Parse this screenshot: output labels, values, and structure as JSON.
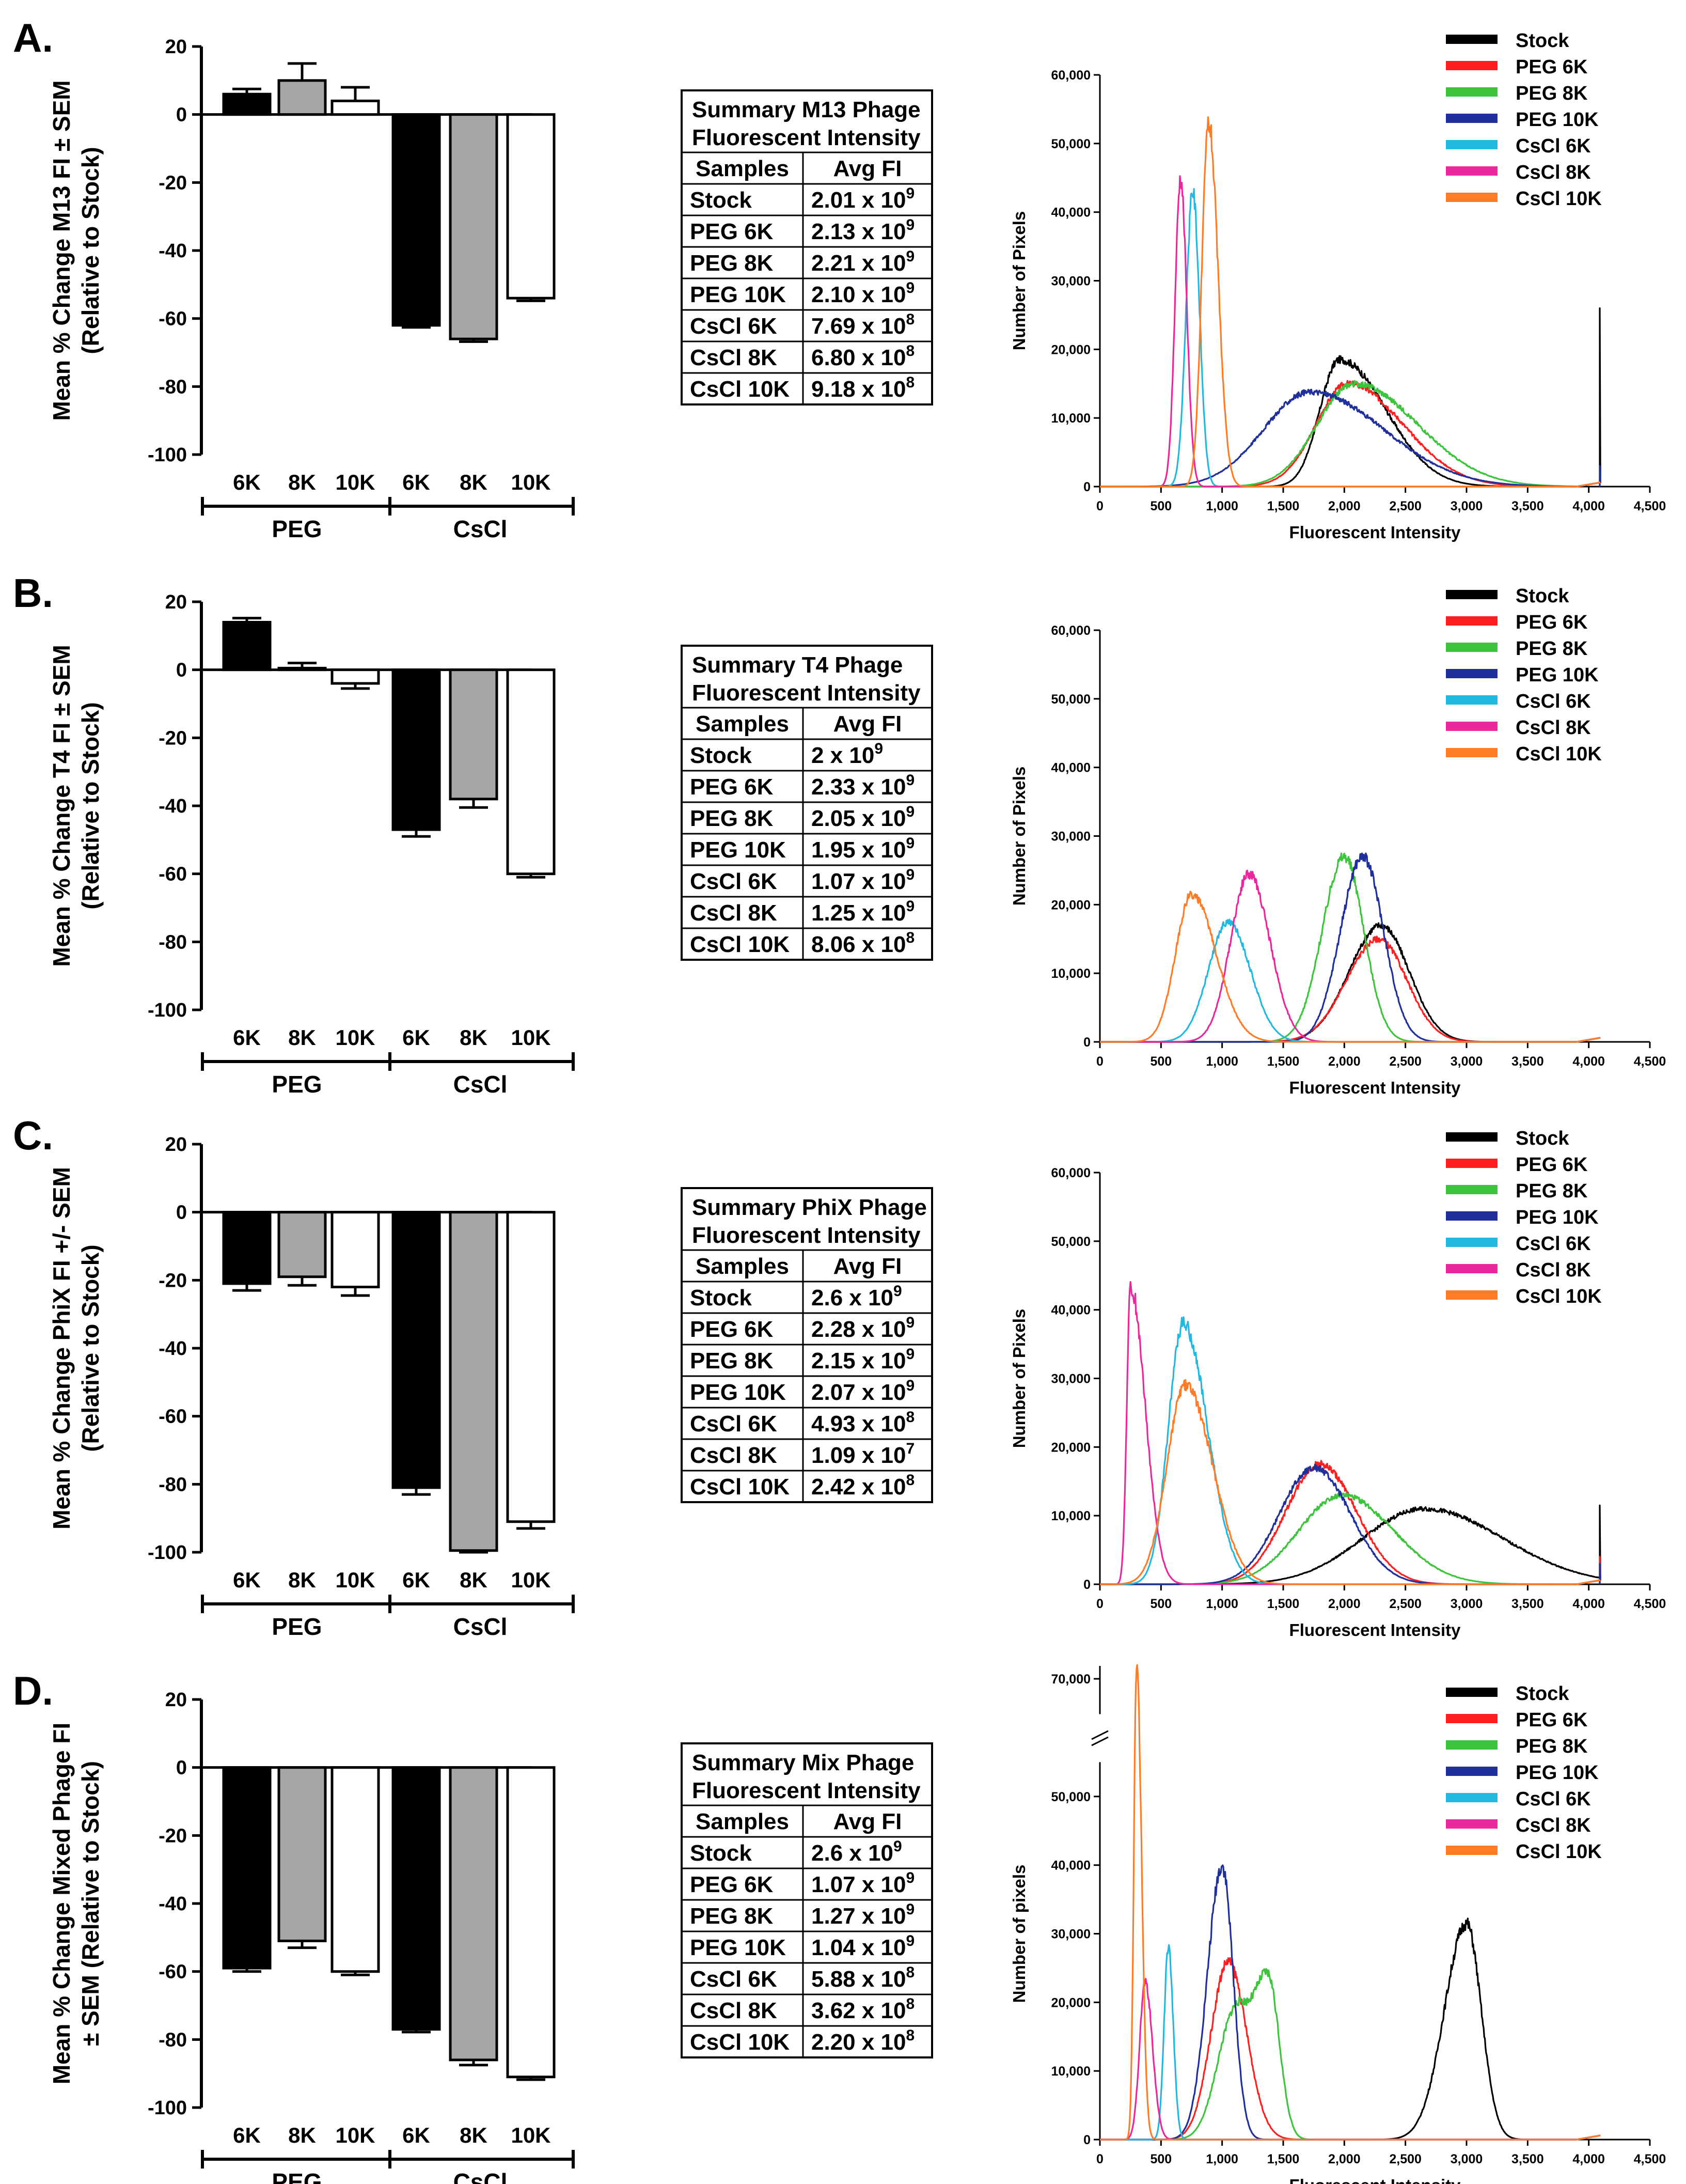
{
  "panels": [
    {
      "label": "A.",
      "bar_chart": {
        "type": "bar",
        "ylabel_line1": "Mean % Change M13 FI ± SEM",
        "ylabel_line2": "(Relative to Stock)",
        "ylim": [
          -100,
          20
        ],
        "yticks": [
          20,
          0,
          -20,
          -40,
          -60,
          -80,
          -100
        ],
        "categories": [
          "6K",
          "8K",
          "10K",
          "6K",
          "8K",
          "10K"
        ],
        "groups": [
          "PEG",
          "CsCl"
        ],
        "values": [
          6,
          10,
          4,
          -62,
          -66,
          -54
        ],
        "errors": [
          1.5,
          5,
          4,
          0.6,
          0.8,
          0.8
        ],
        "fills": [
          "#000000",
          "#a6a6a6",
          "#ffffff",
          "#000000",
          "#a6a6a6",
          "#ffffff"
        ]
      },
      "table": {
        "title_line1": "Summary M13 Phage",
        "title_line2": "Fluorescent Intensity",
        "headers": [
          "Samples",
          "Avg FI"
        ],
        "rows": [
          {
            "sample": "Stock",
            "mant": "2.01 x 10",
            "exp": "9"
          },
          {
            "sample": "PEG 6K",
            "mant": "2.13 x 10",
            "exp": "9"
          },
          {
            "sample": "PEG 8K",
            "mant": "2.21 x 10",
            "exp": "9"
          },
          {
            "sample": "PEG 10K",
            "mant": "2.10 x 10",
            "exp": "9"
          },
          {
            "sample": "CsCl 6K",
            "mant": "7.69 x 10",
            "exp": "8"
          },
          {
            "sample": "CsCl 8K",
            "mant": "6.80 x 10",
            "exp": "8"
          },
          {
            "sample": "CsCl 10K",
            "mant": "9.18 x 10",
            "exp": "8"
          }
        ]
      },
      "histogram": {
        "type": "line",
        "xlabel": "Fluorescent Intensity",
        "ylabel": "Number of Pixels",
        "xlim": [
          0,
          4500
        ],
        "ylim": [
          0,
          60000
        ],
        "xticks": [
          "0",
          "500",
          "1,000",
          "1,500",
          "2,000",
          "2,500",
          "3,000",
          "3,500",
          "4,000",
          "4,500"
        ],
        "yticks": [
          "0",
          "10,000",
          "20,000",
          "30,000",
          "40,000",
          "50,000",
          "60,000"
        ],
        "legend": [
          "Stock",
          "PEG 6K",
          "PEG 8K",
          "PEG 10K",
          "CsCl 6K",
          "CsCl 8K",
          "CsCl 10K"
        ],
        "series": [
          {
            "name": "Stock",
            "color": "#000000",
            "peaks": [
              [
                1960,
                18500,
                160,
                380
              ]
            ],
            "spike": [
              4090,
              26000
            ]
          },
          {
            "name": "PEG 6K",
            "color": "#ff1f1f",
            "peaks": [
              [
                2030,
                15000,
                260,
                450
              ]
            ]
          },
          {
            "name": "PEG 8K",
            "color": "#3cc43c",
            "peaks": [
              [
                2080,
                15000,
                300,
                520
              ]
            ]
          },
          {
            "name": "PEG 10K",
            "color": "#1f2f9c",
            "peaks": [
              [
                1720,
                13800,
                380,
                600
              ]
            ],
            "spike": [
              4090,
              3000
            ]
          },
          {
            "name": "CsCl 6K",
            "color": "#22b8e0",
            "peaks": [
              [
                760,
                43000,
                55,
                55
              ]
            ]
          },
          {
            "name": "CsCl 8K",
            "color": "#e8289c",
            "peaks": [
              [
                660,
                45000,
                45,
                50
              ]
            ]
          },
          {
            "name": "CsCl 10K",
            "color": "#ff7b26",
            "peaks": [
              [
                890,
                53000,
                55,
                75
              ]
            ]
          }
        ]
      }
    },
    {
      "label": "B.",
      "bar_chart": {
        "type": "bar",
        "ylabel_line1": "Mean % Change T4 FI ± SEM",
        "ylabel_line2": "(Relative to Stock)",
        "ylim": [
          -100,
          20
        ],
        "yticks": [
          20,
          0,
          -20,
          -40,
          -60,
          -80,
          -100
        ],
        "categories": [
          "6K",
          "8K",
          "10K",
          "6K",
          "8K",
          "10K"
        ],
        "groups": [
          "PEG",
          "CsCl"
        ],
        "values": [
          14,
          0.5,
          -4,
          -47,
          -38,
          -60
        ],
        "errors": [
          1.2,
          1.5,
          1.5,
          2,
          2.5,
          1
        ],
        "fills": [
          "#000000",
          "#a6a6a6",
          "#ffffff",
          "#000000",
          "#a6a6a6",
          "#ffffff"
        ]
      },
      "table": {
        "title_line1": "Summary T4 Phage",
        "title_line2": "Fluorescent Intensity",
        "headers": [
          "Samples",
          "Avg FI"
        ],
        "rows": [
          {
            "sample": "Stock",
            "mant": "2 x 10",
            "exp": "9"
          },
          {
            "sample": "PEG 6K",
            "mant": "2.33 x 10",
            "exp": "9"
          },
          {
            "sample": "PEG 8K",
            "mant": "2.05 x 10",
            "exp": "9"
          },
          {
            "sample": "PEG 10K",
            "mant": "1.95 x 10",
            "exp": "9"
          },
          {
            "sample": "CsCl 6K",
            "mant": "1.07 x 10",
            "exp": "9"
          },
          {
            "sample": "CsCl 8K",
            "mant": "1.25 x 10",
            "exp": "9"
          },
          {
            "sample": "CsCl 10K",
            "mant": "8.06 x 10",
            "exp": "8"
          }
        ]
      },
      "histogram": {
        "type": "line",
        "xlabel": "Fluorescent Intensity",
        "ylabel": "Number of Pixels",
        "xlim": [
          0,
          4500
        ],
        "ylim": [
          0,
          60000
        ],
        "xticks": [
          "0",
          "500",
          "1,000",
          "1,500",
          "2,000",
          "2,500",
          "3,000",
          "3,500",
          "4,000",
          "4,500"
        ],
        "yticks": [
          "0",
          "10,000",
          "20,000",
          "30,000",
          "40,000",
          "50,000",
          "60,000"
        ],
        "legend": [
          "Stock",
          "PEG 6K",
          "PEG 8K",
          "PEG 10K",
          "CsCl 6K",
          "CsCl 8K",
          "CsCl 10K"
        ],
        "series": [
          {
            "name": "Stock",
            "color": "#000000",
            "peaks": [
              [
                2300,
                17000,
                260,
                230
              ]
            ]
          },
          {
            "name": "PEG 6K",
            "color": "#ff1f1f",
            "peaks": [
              [
                2280,
                15000,
                260,
                230
              ]
            ]
          },
          {
            "name": "PEG 8K",
            "color": "#3cc43c",
            "peaks": [
              [
                2000,
                27000,
                180,
                160
              ]
            ]
          },
          {
            "name": "PEG 10K",
            "color": "#1f2f9c",
            "peaks": [
              [
                2150,
                27000,
                180,
                170
              ]
            ]
          },
          {
            "name": "CsCl 6K",
            "color": "#22b8e0",
            "peaks": [
              [
                1050,
                17500,
                160,
                180
              ]
            ]
          },
          {
            "name": "CsCl 8K",
            "color": "#e8289c",
            "peaks": [
              [
                1220,
                24500,
                150,
                170
              ]
            ]
          },
          {
            "name": "CsCl 10K",
            "color": "#ff7b26",
            "peaks": [
              [
                750,
                21500,
                130,
                200
              ]
            ]
          }
        ]
      }
    },
    {
      "label": "C.",
      "bar_chart": {
        "type": "bar",
        "ylabel_line1": "Mean % Change PhiX FI +/- SEM",
        "ylabel_line2": "(Relative to Stock)",
        "ylim": [
          -100,
          20
        ],
        "yticks": [
          20,
          0,
          -20,
          -40,
          -60,
          -80,
          -100
        ],
        "categories": [
          "6K",
          "8K",
          "10K",
          "6K",
          "8K",
          "10K"
        ],
        "groups": [
          "PEG",
          "CsCl"
        ],
        "values": [
          -21,
          -19,
          -22,
          -81,
          -99.5,
          -91
        ],
        "errors": [
          2,
          2.5,
          2.5,
          2,
          0.5,
          2
        ],
        "fills": [
          "#000000",
          "#a6a6a6",
          "#ffffff",
          "#000000",
          "#a6a6a6",
          "#ffffff"
        ]
      },
      "table": {
        "title_line1": "Summary PhiX Phage",
        "title_line2": "Fluorescent Intensity",
        "headers": [
          "Samples",
          "Avg FI"
        ],
        "rows": [
          {
            "sample": "Stock",
            "mant": "2.6 x 10",
            "exp": "9"
          },
          {
            "sample": "PEG 6K",
            "mant": "2.28 x 10",
            "exp": "9"
          },
          {
            "sample": "PEG 8K",
            "mant": "2.15 x 10",
            "exp": "9"
          },
          {
            "sample": "PEG 10K",
            "mant": "2.07 x 10",
            "exp": "9"
          },
          {
            "sample": "CsCl 6K",
            "mant": "4.93 x 10",
            "exp": "8"
          },
          {
            "sample": "CsCl 8K",
            "mant": "1.09 x 10",
            "exp": "7"
          },
          {
            "sample": "CsCl 10K",
            "mant": "2.42 x 10",
            "exp": "8"
          }
        ]
      },
      "histogram": {
        "type": "line",
        "xlabel": "Fluorescent Intensity",
        "ylabel": "Number of Pixels",
        "xlim": [
          0,
          4500
        ],
        "ylim": [
          0,
          60000
        ],
        "xticks": [
          "0",
          "500",
          "1,000",
          "1,500",
          "2,000",
          "2,500",
          "3,000",
          "3,500",
          "4,000",
          "4,500"
        ],
        "yticks": [
          "0",
          "10,000",
          "20,000",
          "30,000",
          "40,000",
          "50,000",
          "60,000"
        ],
        "legend": [
          "Stock",
          "PEG 6K",
          "PEG 8K",
          "PEG 10K",
          "CsCl 6K",
          "CsCl 8K",
          "CsCl 10K"
        ],
        "series": [
          {
            "name": "Stock",
            "color": "#000000",
            "peaks": [
              [
                2650,
                11000,
                500,
                650
              ]
            ],
            "spike": [
              4090,
              11500
            ]
          },
          {
            "name": "PEG 6K",
            "color": "#ff1f1f",
            "peaks": [
              [
                1800,
                17500,
                280,
                300
              ]
            ],
            "spike": [
              4090,
              4000
            ]
          },
          {
            "name": "PEG 8K",
            "color": "#3cc43c",
            "peaks": [
              [
                1980,
                13000,
                350,
                420
              ]
            ]
          },
          {
            "name": "PEG 10K",
            "color": "#1f2f9c",
            "peaks": [
              [
                1750,
                17000,
                280,
                300
              ]
            ],
            "spike": [
              4090,
              3000
            ]
          },
          {
            "name": "CsCl 6K",
            "color": "#22b8e0",
            "peaks": [
              [
                680,
                38000,
                120,
                200
              ]
            ]
          },
          {
            "name": "CsCl 8K",
            "color": "#e8289c",
            "peaks": [
              [
                250,
                43500,
                30,
                120
              ]
            ]
          },
          {
            "name": "CsCl 10K",
            "color": "#ff7b26",
            "peaks": [
              [
                700,
                29000,
                150,
                220
              ]
            ]
          }
        ]
      }
    },
    {
      "label": "D.",
      "bar_chart": {
        "type": "bar",
        "ylabel_line1": "Mean % Change Mixed Phage FI",
        "ylabel_line2": "± SEM (Relative to Stock)",
        "ylim": [
          -100,
          20
        ],
        "yticks": [
          20,
          0,
          -20,
          -40,
          -60,
          -80,
          -100
        ],
        "categories": [
          "6K",
          "8K",
          "10K",
          "6K",
          "8K",
          "10K"
        ],
        "groups": [
          "PEG",
          "CsCl"
        ],
        "values": [
          -59,
          -51,
          -60,
          -77,
          -86,
          -91
        ],
        "errors": [
          1,
          2,
          1,
          0.8,
          1.5,
          0.8
        ],
        "fills": [
          "#000000",
          "#a6a6a6",
          "#ffffff",
          "#000000",
          "#a6a6a6",
          "#ffffff"
        ]
      },
      "table": {
        "title_line1": "Summary Mix Phage",
        "title_line2": "Fluorescent Intensity",
        "headers": [
          "Samples",
          "Avg FI"
        ],
        "rows": [
          {
            "sample": "Stock",
            "mant": "2.6 x 10",
            "exp": "9"
          },
          {
            "sample": "PEG 6K",
            "mant": "1.07 x 10",
            "exp": "9"
          },
          {
            "sample": "PEG 8K",
            "mant": "1.27 x 10",
            "exp": "9"
          },
          {
            "sample": "PEG 10K",
            "mant": "1.04 x 10",
            "exp": "9"
          },
          {
            "sample": "CsCl 6K",
            "mant": "5.88 x 10",
            "exp": "8"
          },
          {
            "sample": "CsCl 8K",
            "mant": "3.62 x 10",
            "exp": "8"
          },
          {
            "sample": "CsCl 10K",
            "mant": "2.20 x 10",
            "exp": "8"
          }
        ]
      },
      "histogram": {
        "type": "line",
        "xlabel": "Fluorescent Intensity",
        "ylabel": "Number of pixels",
        "xlim": [
          0,
          4500
        ],
        "ylim": [
          0,
          60000
        ],
        "axis_break": true,
        "top_tick": "70,000",
        "xticks": [
          "0",
          "500",
          "1,000",
          "1,500",
          "2,000",
          "2,500",
          "3,000",
          "3,500",
          "4,000",
          "4,500"
        ],
        "yticks": [
          "0",
          "10,000",
          "20,000",
          "30,000",
          "40,000",
          "50,000"
        ],
        "legend": [
          "Stock",
          "PEG 6K",
          "PEG 8K",
          "PEG 10K",
          "CsCl 6K",
          "CsCl 8K",
          "CsCl 10K"
        ],
        "series": [
          {
            "name": "Stock",
            "color": "#000000",
            "peaks": [
              [
                3000,
                31500,
                180,
                120
              ]
            ]
          },
          {
            "name": "PEG 6K",
            "color": "#ff1f1f",
            "peaks": [
              [
                1050,
                26000,
                140,
                150
              ]
            ]
          },
          {
            "name": "PEG 8K",
            "color": "#3cc43c",
            "peaks": [
              [
                1100,
                18000,
                140,
                120
              ],
              [
                1380,
                23000,
                120,
                90
              ]
            ]
          },
          {
            "name": "PEG 10K",
            "color": "#1f2f9c",
            "peaks": [
              [
                1000,
                40000,
                120,
                90
              ]
            ]
          },
          {
            "name": "CsCl 6K",
            "color": "#22b8e0",
            "peaks": [
              [
                560,
                28000,
                35,
                40
              ]
            ]
          },
          {
            "name": "CsCl 8K",
            "color": "#e8289c",
            "peaks": [
              [
                370,
                23000,
                45,
                60
              ]
            ]
          },
          {
            "name": "CsCl 10K",
            "color": "#ff7b26",
            "peaks": [
              [
                300,
                70000,
                22,
                40
              ]
            ]
          }
        ]
      }
    }
  ]
}
